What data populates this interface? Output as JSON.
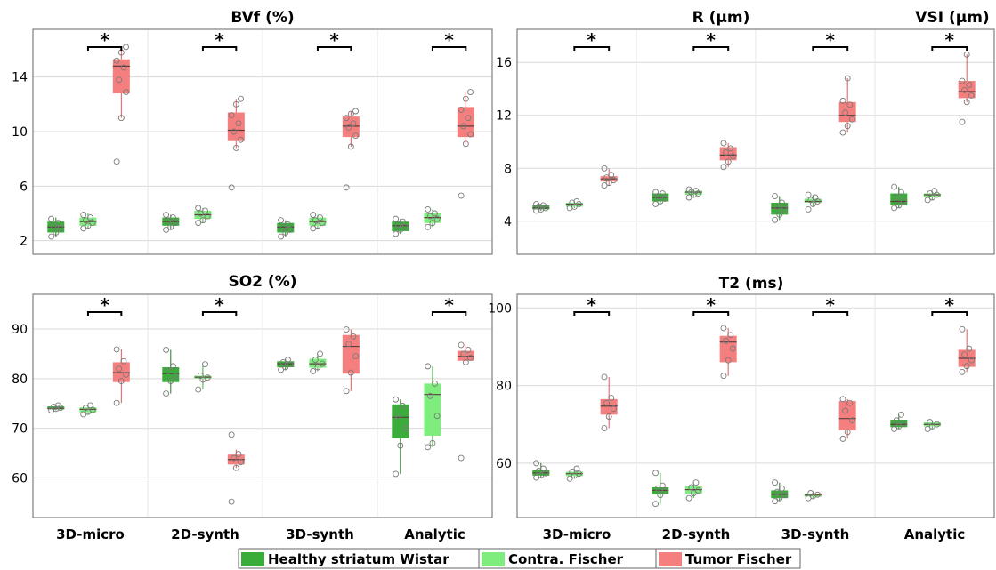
{
  "colors": {
    "healthy": "#3aac3a",
    "contra": "#7eed7e",
    "tumor": "#f57f7f"
  },
  "legend": [
    "Healthy striatum Wistar",
    "Contra. Fischer",
    "Tumor Fischer"
  ],
  "chart_data": [
    {
      "type": "box",
      "title": "BVf (%)",
      "categories": [
        "3D-micro",
        "2D-synth",
        "3D-synth",
        "Analytic"
      ],
      "ylim": [
        1,
        17.5
      ],
      "yticks": [
        2,
        6,
        10,
        14
      ],
      "significance": [
        true,
        true,
        true,
        true
      ],
      "series": [
        {
          "name": "Healthy striatum Wistar",
          "boxes": [
            {
              "whislo": 2.3,
              "q1": 2.6,
              "med": 3.0,
              "q3": 3.4,
              "whishi": 3.7,
              "points": [
                2.3,
                2.6,
                2.9,
                3.1,
                3.3,
                3.6
              ]
            },
            {
              "whislo": 2.8,
              "q1": 3.1,
              "med": 3.4,
              "q3": 3.7,
              "whishi": 3.9,
              "points": [
                2.8,
                3.0,
                3.3,
                3.5,
                3.7,
                3.9
              ]
            },
            {
              "whislo": 2.3,
              "q1": 2.6,
              "med": 3.0,
              "q3": 3.3,
              "whishi": 3.5,
              "points": [
                2.3,
                2.6,
                2.8,
                3.0,
                3.2,
                3.5
              ]
            },
            {
              "whislo": 2.5,
              "q1": 2.7,
              "med": 3.1,
              "q3": 3.4,
              "whishi": 3.6,
              "points": [
                2.5,
                2.8,
                3.0,
                3.2,
                3.4,
                3.6
              ]
            }
          ]
        },
        {
          "name": "Contra. Fischer",
          "boxes": [
            {
              "whislo": 2.9,
              "q1": 3.1,
              "med": 3.4,
              "q3": 3.7,
              "whishi": 4.0,
              "points": [
                2.9,
                3.1,
                3.3,
                3.5,
                3.7,
                3.9
              ]
            },
            {
              "whislo": 3.3,
              "q1": 3.6,
              "med": 3.9,
              "q3": 4.2,
              "whishi": 4.4,
              "points": [
                3.3,
                3.5,
                3.8,
                4.0,
                4.2,
                4.4
              ]
            },
            {
              "whislo": 2.9,
              "q1": 3.1,
              "med": 3.4,
              "q3": 3.7,
              "whishi": 3.9,
              "points": [
                2.9,
                3.1,
                3.3,
                3.5,
                3.7,
                3.9
              ]
            },
            {
              "whislo": 3.0,
              "q1": 3.3,
              "med": 3.7,
              "q3": 4.0,
              "whishi": 4.3,
              "points": [
                3.0,
                3.3,
                3.6,
                3.8,
                4.0,
                4.3
              ]
            }
          ]
        },
        {
          "name": "Tumor Fischer",
          "boxes": [
            {
              "whislo": 11.0,
              "q1": 12.8,
              "med": 14.8,
              "q3": 15.3,
              "whishi": 16.2,
              "points": [
                7.8,
                11.0,
                12.9,
                13.8,
                14.7,
                15.2,
                15.8,
                16.2
              ]
            },
            {
              "whislo": 8.8,
              "q1": 9.3,
              "med": 10.1,
              "q3": 11.4,
              "whishi": 12.4,
              "points": [
                5.9,
                8.8,
                9.4,
                10.0,
                10.6,
                11.2,
                12.0,
                12.4
              ]
            },
            {
              "whislo": 8.9,
              "q1": 9.6,
              "med": 10.4,
              "q3": 11.1,
              "whishi": 11.5,
              "points": [
                5.9,
                8.9,
                9.7,
                10.3,
                10.6,
                11.0,
                11.3,
                11.5
              ]
            },
            {
              "whislo": 9.1,
              "q1": 9.6,
              "med": 10.4,
              "q3": 11.8,
              "whishi": 12.9,
              "points": [
                5.3,
                9.1,
                9.8,
                10.4,
                11.0,
                11.6,
                12.4,
                12.9
              ]
            }
          ]
        }
      ]
    },
    {
      "type": "box",
      "title": "R (µm)",
      "title2": "VSI (µm)",
      "categories": [
        "3D-micro",
        "2D-synth",
        "3D-synth",
        "Analytic"
      ],
      "ylim": [
        1.5,
        18.5
      ],
      "yticks": [
        4,
        8,
        12,
        16
      ],
      "significance": [
        true,
        true,
        true,
        true
      ],
      "series": [
        {
          "name": "Healthy striatum Wistar",
          "boxes": [
            {
              "whislo": 4.8,
              "q1": 4.9,
              "med": 5.0,
              "q3": 5.2,
              "whishi": 5.3,
              "points": [
                4.8,
                4.9,
                5.0,
                5.1,
                5.2,
                5.3
              ]
            },
            {
              "whislo": 5.3,
              "q1": 5.5,
              "med": 5.8,
              "q3": 6.1,
              "whishi": 6.2,
              "points": [
                5.3,
                5.5,
                5.7,
                5.9,
                6.1,
                6.2
              ]
            },
            {
              "whislo": 4.1,
              "q1": 4.5,
              "med": 5.0,
              "q3": 5.4,
              "whishi": 5.9,
              "points": [
                4.1,
                4.5,
                4.9,
                5.1,
                5.4,
                5.9
              ]
            },
            {
              "whislo": 5.0,
              "q1": 5.2,
              "med": 5.5,
              "q3": 6.1,
              "whishi": 6.6,
              "points": [
                5.0,
                5.2,
                5.5,
                5.8,
                6.2,
                6.6
              ]
            }
          ]
        },
        {
          "name": "Contra. Fischer",
          "boxes": [
            {
              "whislo": 5.0,
              "q1": 5.1,
              "med": 5.3,
              "q3": 5.4,
              "whishi": 5.5,
              "points": [
                5.0,
                5.1,
                5.3,
                5.4,
                5.5
              ]
            },
            {
              "whislo": 5.8,
              "q1": 6.0,
              "med": 6.2,
              "q3": 6.3,
              "whishi": 6.4,
              "points": [
                5.8,
                6.0,
                6.1,
                6.2,
                6.3,
                6.4
              ]
            },
            {
              "whislo": 5.1,
              "q1": 5.4,
              "med": 5.5,
              "q3": 5.7,
              "whishi": 6.0,
              "points": [
                4.9,
                5.3,
                5.5,
                5.6,
                5.8,
                6.0
              ]
            },
            {
              "whislo": 5.6,
              "q1": 5.8,
              "med": 6.0,
              "q3": 6.1,
              "whishi": 6.3,
              "points": [
                5.6,
                5.8,
                6.0,
                6.1,
                6.3
              ]
            }
          ]
        },
        {
          "name": "Tumor Fischer",
          "boxes": [
            {
              "whislo": 6.7,
              "q1": 7.0,
              "med": 7.2,
              "q3": 7.4,
              "whishi": 8.0,
              "points": [
                6.7,
                6.9,
                7.1,
                7.3,
                7.5,
                8.0
              ]
            },
            {
              "whislo": 8.1,
              "q1": 8.6,
              "med": 9.0,
              "q3": 9.6,
              "whishi": 9.9,
              "points": [
                8.1,
                8.5,
                8.9,
                9.2,
                9.5,
                9.9
              ]
            },
            {
              "whislo": 10.7,
              "q1": 11.5,
              "med": 12.0,
              "q3": 13.0,
              "whishi": 14.8,
              "points": [
                10.7,
                11.2,
                11.7,
                12.2,
                12.8,
                13.1,
                14.8
              ]
            },
            {
              "whislo": 13.0,
              "q1": 13.3,
              "med": 13.8,
              "q3": 14.6,
              "whishi": 16.6,
              "points": [
                11.5,
                13.0,
                13.5,
                13.9,
                14.3,
                14.6,
                16.6
              ]
            }
          ]
        }
      ]
    },
    {
      "type": "box",
      "title": "SO2 (%)",
      "categories": [
        "3D-micro",
        "2D-synth",
        "3D-synth",
        "Analytic"
      ],
      "ylim": [
        52,
        97
      ],
      "yticks": [
        60,
        70,
        80,
        90
      ],
      "significance": [
        true,
        true,
        false,
        true
      ],
      "series": [
        {
          "name": "Healthy striatum Wistar",
          "boxes": [
            {
              "whislo": 73.6,
              "q1": 73.8,
              "med": 74.0,
              "q3": 74.4,
              "whishi": 74.7,
              "points": [
                73.6,
                73.9,
                74.1,
                74.3,
                74.6
              ]
            },
            {
              "whislo": 77.0,
              "q1": 79.3,
              "med": 81.0,
              "q3": 82.3,
              "whishi": 85.8,
              "points": [
                77.0,
                79.5,
                80.5,
                81.5,
                82.5,
                85.8
              ]
            },
            {
              "whislo": 81.8,
              "q1": 82.3,
              "med": 83.0,
              "q3": 83.5,
              "whishi": 83.9,
              "points": [
                81.8,
                82.3,
                82.9,
                83.3,
                83.8
              ]
            },
            {
              "whislo": 60.8,
              "q1": 68.0,
              "med": 72.2,
              "q3": 74.8,
              "whishi": 75.8,
              "points": [
                60.8,
                66.5,
                70.0,
                72.5,
                74.5,
                75.8
              ]
            }
          ]
        },
        {
          "name": "Contra. Fischer",
          "boxes": [
            {
              "whislo": 72.8,
              "q1": 73.2,
              "med": 73.8,
              "q3": 74.2,
              "whishi": 74.6,
              "points": [
                72.8,
                73.3,
                73.7,
                74.1,
                74.6
              ]
            },
            {
              "whislo": 77.8,
              "q1": 80.0,
              "med": 80.3,
              "q3": 80.6,
              "whishi": 82.9,
              "points": [
                77.8,
                79.8,
                80.2,
                80.6,
                82.9
              ]
            },
            {
              "whislo": 81.5,
              "q1": 82.2,
              "med": 83.0,
              "q3": 84.0,
              "whishi": 85.0,
              "points": [
                81.5,
                82.3,
                83.0,
                83.8,
                85.0
              ]
            },
            {
              "whislo": 66.2,
              "q1": 68.5,
              "med": 76.8,
              "q3": 79.0,
              "whishi": 82.5,
              "points": [
                66.2,
                67.0,
                72.5,
                76.5,
                79.0,
                82.5
              ]
            }
          ]
        },
        {
          "name": "Tumor Fischer",
          "boxes": [
            {
              "whislo": 75.1,
              "q1": 79.3,
              "med": 81.2,
              "q3": 83.3,
              "whishi": 85.9,
              "points": [
                75.1,
                79.5,
                80.8,
                82.0,
                83.5,
                85.9
              ]
            },
            {
              "whislo": 62.0,
              "q1": 62.7,
              "med": 63.7,
              "q3": 64.7,
              "whishi": 65.7,
              "points": [
                55.2,
                62.0,
                63.2,
                64.0,
                64.8,
                68.7
              ]
            },
            {
              "whislo": 77.5,
              "q1": 81.0,
              "med": 86.5,
              "q3": 88.8,
              "whishi": 89.9,
              "points": [
                77.5,
                81.2,
                84.5,
                87.0,
                88.5,
                89.9
              ]
            },
            {
              "whislo": 83.3,
              "q1": 83.6,
              "med": 84.5,
              "q3": 85.6,
              "whishi": 86.8,
              "points": [
                64.0,
                83.3,
                84.2,
                85.0,
                85.8,
                86.8
              ]
            }
          ]
        }
      ]
    },
    {
      "type": "box",
      "title": "T2 (ms)",
      "categories": [
        "3D-micro",
        "2D-synth",
        "3D-synth",
        "Analytic"
      ],
      "ylim": [
        46,
        103.5
      ],
      "yticks": [
        60,
        80,
        100
      ],
      "significance": [
        true,
        true,
        true,
        true
      ],
      "series": [
        {
          "name": "Healthy striatum Wistar",
          "boxes": [
            {
              "whislo": 56.3,
              "q1": 56.8,
              "med": 57.5,
              "q3": 58.2,
              "whishi": 60.0,
              "points": [
                56.3,
                56.9,
                57.4,
                58.0,
                58.6,
                60.0
              ]
            },
            {
              "whislo": 49.5,
              "q1": 52.0,
              "med": 53.0,
              "q3": 53.8,
              "whishi": 57.5,
              "points": [
                49.5,
                51.8,
                52.8,
                53.5,
                54.2,
                57.5
              ]
            },
            {
              "whislo": 50.2,
              "q1": 51.0,
              "med": 52.0,
              "q3": 53.0,
              "whishi": 55.0,
              "points": [
                50.2,
                51.0,
                51.8,
                52.6,
                53.5,
                55.0
              ]
            },
            {
              "whislo": 68.8,
              "q1": 69.3,
              "med": 70.0,
              "q3": 71.2,
              "whishi": 72.5,
              "points": [
                68.8,
                69.5,
                70.2,
                71.0,
                72.5
              ]
            }
          ]
        },
        {
          "name": "Contra. Fischer",
          "boxes": [
            {
              "whislo": 56.0,
              "q1": 56.7,
              "med": 57.3,
              "q3": 57.8,
              "whishi": 58.6,
              "points": [
                56.0,
                56.8,
                57.3,
                57.8,
                58.6
              ]
            },
            {
              "whislo": 51.0,
              "q1": 52.2,
              "med": 53.2,
              "q3": 54.2,
              "whishi": 55.0,
              "points": [
                51.0,
                52.3,
                53.0,
                53.8,
                55.0
              ]
            },
            {
              "whislo": 51.0,
              "q1": 51.4,
              "med": 51.8,
              "q3": 52.1,
              "whishi": 52.5,
              "points": [
                51.0,
                51.5,
                51.9,
                52.3
              ]
            },
            {
              "whislo": 68.8,
              "q1": 69.5,
              "med": 70.0,
              "q3": 70.5,
              "whishi": 71.0,
              "points": [
                68.8,
                69.5,
                70.0,
                70.6
              ]
            }
          ]
        },
        {
          "name": "Tumor Fischer",
          "boxes": [
            {
              "whislo": 69.0,
              "q1": 72.5,
              "med": 74.7,
              "q3": 76.5,
              "whishi": 82.2,
              "points": [
                69.0,
                72.0,
                74.0,
                75.5,
                76.8,
                82.2
              ]
            },
            {
              "whislo": 82.5,
              "q1": 86.0,
              "med": 91.2,
              "q3": 92.8,
              "whishi": 94.8,
              "points": [
                82.5,
                86.5,
                89.5,
                91.5,
                93.0,
                94.8
              ]
            },
            {
              "whislo": 66.3,
              "q1": 68.5,
              "med": 71.5,
              "q3": 76.0,
              "whishi": 76.5,
              "points": [
                66.3,
                68.0,
                71.0,
                73.5,
                75.5,
                76.5
              ]
            },
            {
              "whislo": 83.5,
              "q1": 84.8,
              "med": 87.0,
              "q3": 89.2,
              "whishi": 94.5,
              "points": [
                83.5,
                85.0,
                86.5,
                88.0,
                89.5,
                94.5
              ]
            }
          ]
        }
      ]
    }
  ]
}
